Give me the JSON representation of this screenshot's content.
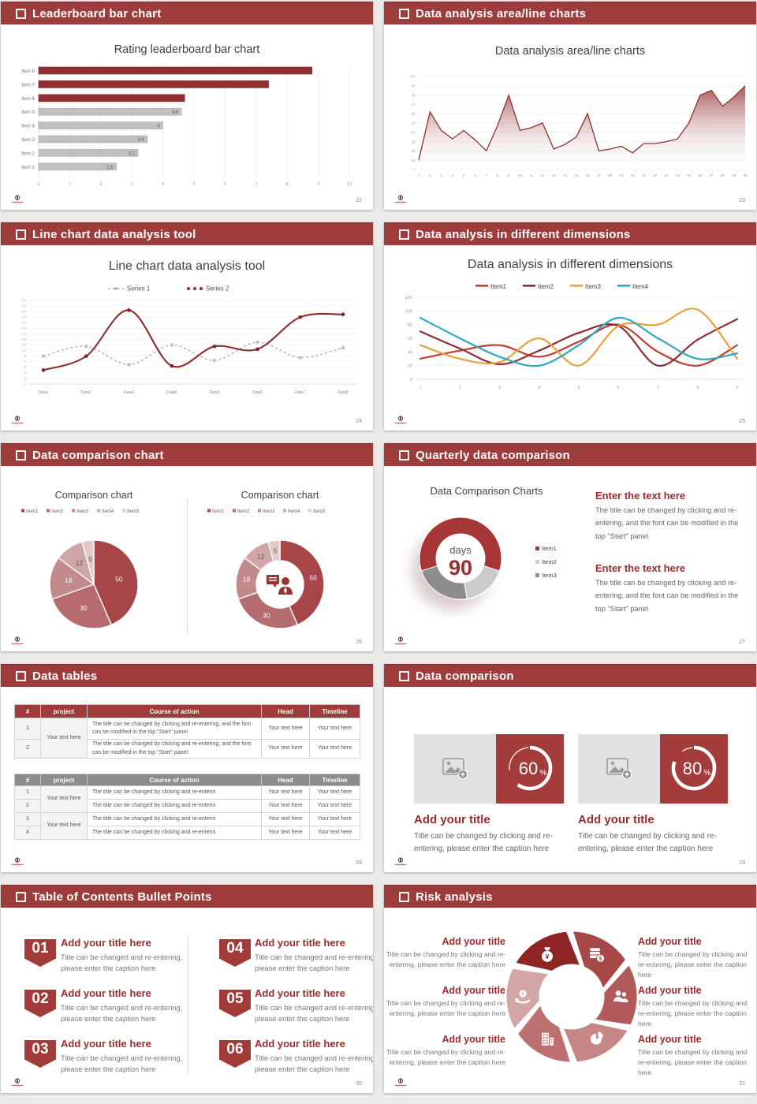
{
  "theme": {
    "header_bg": "#9e3c3c",
    "accent_red": "#9e2b2b",
    "dark_red": "#8f2f2f",
    "bar_gray": "#c1c0c0",
    "body_text": "#666666",
    "page_bg": "#ebeae9"
  },
  "slides": [
    {
      "header": "Leaderboard bar chart",
      "page": "22",
      "chart_data": {
        "type": "bar",
        "orientation": "horizontal",
        "title": "Rating leaderboard bar chart",
        "categories": [
          "Item 1",
          "Item 2",
          "Item 3",
          "Item 4",
          "Item 5",
          "Item 6",
          "Item 7",
          "Item 8"
        ],
        "values": [
          2.5,
          3.2,
          3.5,
          4,
          4.6,
          4.7,
          7.4,
          8.8
        ],
        "value_labels": [
          "2.5",
          "3.2",
          "3.5",
          "4",
          "4.6",
          "",
          "",
          ""
        ],
        "bar_colors": [
          "#c1c0c0",
          "#c1c0c0",
          "#c1c0c0",
          "#c1c0c0",
          "#c1c0c0",
          "#8f2f2f",
          "#8f2f2f",
          "#8f2f2f"
        ],
        "xlim": [
          0,
          10
        ],
        "xticks": [
          0,
          1,
          2,
          3,
          4,
          5,
          6,
          7,
          8,
          9,
          10
        ],
        "grid": true
      }
    },
    {
      "header": "Data analysis area/line charts",
      "page": "23",
      "chart_data": {
        "type": "area",
        "title": "Data analysis area/line charts",
        "x": [
          1,
          2,
          3,
          4,
          5,
          6,
          7,
          8,
          9,
          10,
          11,
          12,
          13,
          14,
          15,
          16,
          17,
          18,
          19,
          20,
          21,
          22,
          23,
          24,
          25,
          26,
          27,
          28,
          29,
          30
        ],
        "values": [
          10,
          62,
          42,
          33,
          42,
          32,
          20,
          47,
          80,
          42,
          45,
          50,
          22,
          27,
          35,
          60,
          20,
          22,
          25,
          18,
          28,
          28,
          30,
          33,
          50,
          80,
          85,
          68,
          78,
          90
        ],
        "ylim": [
          0,
          100
        ],
        "yticks": [
          0,
          10,
          20,
          30,
          40,
          50,
          60,
          70,
          80,
          90,
          100
        ],
        "line_color": "#8c3232",
        "fill_top": "#9c4545",
        "fill_bottom": "#ffffff",
        "grid": true
      }
    },
    {
      "header": "Line chart data analysis tool",
      "page": "24",
      "chart_data": {
        "type": "line",
        "title": "Line chart data analysis tool",
        "categories": [
          "Data1",
          "Data2",
          "Data3",
          "Data4",
          "Data5",
          "Data6",
          "Data7",
          "Data8"
        ],
        "series": [
          {
            "name": "Series 1",
            "color": "#bdbdbd",
            "style": "dashed",
            "values": [
              90,
              125,
              60,
              130,
              75,
              140,
              85,
              120
            ]
          },
          {
            "name": "Series 2",
            "color": "#8e2d2d",
            "style": "solid",
            "values": [
              40,
              90,
              255,
              55,
              125,
              115,
              230,
              240
            ]
          }
        ],
        "ylim": [
          -10,
          290
        ],
        "yticks": [
          290,
          270,
          250,
          230,
          210,
          190,
          170,
          150,
          130,
          110,
          90,
          70,
          50,
          30,
          10,
          -10
        ],
        "legend_position": "top",
        "grid": true
      }
    },
    {
      "header": "Data analysis in different dimensions",
      "page": "25",
      "chart_data": {
        "type": "line",
        "title": "Data analysis in different dimensions",
        "x": [
          1,
          2,
          3,
          4,
          5,
          6,
          7,
          8,
          9
        ],
        "series": [
          {
            "name": "Item1",
            "color": "#c23d30",
            "values": [
              30,
              42,
              50,
              33,
              55,
              80,
              40,
              20,
              50
            ]
          },
          {
            "name": "Item2",
            "color": "#8e2b36",
            "values": [
              70,
              45,
              22,
              42,
              68,
              78,
              20,
              58,
              88
            ]
          },
          {
            "name": "Item3",
            "color": "#e9a13b",
            "values": [
              50,
              30,
              25,
              60,
              20,
              78,
              80,
              102,
              30
            ]
          },
          {
            "name": "Item4",
            "color": "#2fa8c0",
            "values": [
              90,
              60,
              33,
              20,
              50,
              90,
              60,
              30,
              38
            ]
          }
        ],
        "ylim": [
          0,
          120
        ],
        "yticks": [
          0,
          20,
          40,
          60,
          80,
          100,
          120
        ],
        "legend_position": "top",
        "grid": true
      }
    },
    {
      "header": "Data comparison chart",
      "page": "26",
      "chart_data": [
        {
          "type": "pie",
          "title": "Comparison chart",
          "labels": [
            "Item1",
            "Item2",
            "Item3",
            "Item4",
            "Item5"
          ],
          "values": [
            50,
            30,
            18,
            12,
            5
          ],
          "colors": [
            "#a64648",
            "#b66c6e",
            "#c38a8b",
            "#cfa5a6",
            "#e2caca"
          ],
          "label_colors": [
            "#ffffff",
            "#ffffff",
            "#ffffff",
            "#555555",
            "#555555"
          ]
        },
        {
          "type": "donut",
          "title": "Comparison chart",
          "labels": [
            "Item1",
            "Item2",
            "Item3",
            "Item4",
            "Item5"
          ],
          "values": [
            50,
            30,
            18,
            12,
            5
          ],
          "colors": [
            "#a64648",
            "#b66c6e",
            "#c38a8b",
            "#cfa5a6",
            "#e2caca"
          ],
          "label_colors": [
            "#ffffff",
            "#ffffff",
            "#ffffff",
            "#555555",
            "#555555"
          ],
          "center_icon": "presenter-icon"
        }
      ]
    },
    {
      "header": "Quarterly data comparison",
      "page": "27",
      "chart_data": {
        "type": "donut",
        "title": "Data Comparison Charts",
        "center_label": "days",
        "center_value": "90",
        "labels": [
          "Item1",
          "Item2",
          "Item3"
        ],
        "values": [
          60,
          17.5,
          22.5
        ],
        "colors": [
          "#a73737",
          "#cbcbcb",
          "#8d8d8d"
        ],
        "legend_position": "right"
      },
      "text_blocks": [
        {
          "title": "Enter the text here",
          "body": "The title can be changed by clicking and re-entering, and the font can be modified in the top \"Start\" panel"
        },
        {
          "title": "Enter the text here",
          "body": "The title can be changed by clicking and re-entering, and the font can be modified in the top \"Start\" panel"
        }
      ]
    },
    {
      "header": "Data tables",
      "page": "28",
      "tables": [
        {
          "header_bg": "#9e3c3c",
          "columns": [
            "#",
            "project",
            "Course of action",
            "Head",
            "Timeline"
          ],
          "groups": [
            {
              "project": "Your text here",
              "rows": [
                {
                  "num": "1",
                  "course": "The title can be changed by clicking and re-entering, and the font can be modified in the top \"Start\" panel",
                  "head": "Your text here",
                  "timeline": "Your text here"
                },
                {
                  "num": "2",
                  "course": "The title can be changed by clicking and re-entering, and the font can be modified in the top \"Start\" panel",
                  "head": "Your text here",
                  "timeline": "Your text here"
                }
              ]
            }
          ]
        },
        {
          "header_bg": "#8c8c8c",
          "columns": [
            "#",
            "project",
            "Course of action",
            "Head",
            "Timeline"
          ],
          "groups": [
            {
              "project": "Your text here",
              "rows": [
                {
                  "num": "1",
                  "course": "The title can be changed by clicking and re-enterin",
                  "head": "Your text here",
                  "timeline": "Your text here"
                },
                {
                  "num": "2",
                  "course": "The title can be changed by clicking and re-enterin",
                  "head": "Your text here",
                  "timeline": "Your text here"
                }
              ]
            },
            {
              "project": "Your text here",
              "rows": [
                {
                  "num": "3",
                  "course": "The title can be changed by clicking and re-enterin",
                  "head": "Your text here",
                  "timeline": "Your text here"
                },
                {
                  "num": "4",
                  "course": "The title can be changed by clicking and re-enterin",
                  "head": "Your text here",
                  "timeline": "Your text here"
                }
              ]
            }
          ]
        }
      ]
    },
    {
      "header": "Data comparison",
      "page": "29",
      "cards": [
        {
          "percent": "60",
          "percent_symbol": "%",
          "title": "Add your title",
          "caption": "Title can be changed by clicking and re-entering, please enter the caption here"
        },
        {
          "percent": "80",
          "percent_symbol": "%",
          "title": "Add your title",
          "caption": "Title can be changed by clicking and re-entering, please enter the caption here"
        }
      ]
    },
    {
      "header": "Table of Contents Bullet Points",
      "page": "30",
      "items": [
        {
          "num": "01",
          "title": "Add your title here",
          "caption": "Title can be changed and re-entering, please enter the caption here"
        },
        {
          "num": "02",
          "title": "Add your title here",
          "caption": "Title can be changed and re-entering, please enter the caption here"
        },
        {
          "num": "03",
          "title": "Add your title here",
          "caption": "Title can be changed and re-entering, please enter the caption here"
        },
        {
          "num": "04",
          "title": "Add your title here",
          "caption": "Title can be changed and re-entering, please enter the caption here"
        },
        {
          "num": "05",
          "title": "Add your title here",
          "caption": "Title can be changed and re-entering, please enter the caption here"
        },
        {
          "num": "06",
          "title": "Add your title here",
          "caption": "Title can be changed and re-entering, please enter the caption here"
        }
      ]
    },
    {
      "header": "Risk analysis",
      "page": "31",
      "blocks": [
        {
          "side": "left",
          "title": "Add your title",
          "caption": "Title can be changed by clicking and re-entering, please enter the caption here"
        },
        {
          "side": "left",
          "title": "Add your title",
          "caption": "Title can be changed by clicking and re-entering, please enter the caption here"
        },
        {
          "side": "left",
          "title": "Add your title",
          "caption": "Title can be changed by clicking and re-entering, please enter the caption here"
        },
        {
          "side": "right",
          "title": "Add your title",
          "caption": "Title can be changed by clicking and re-entering, please enter the caption here"
        },
        {
          "side": "right",
          "title": "Add your title",
          "caption": "Title can be changed by clicking and re-entering, please enter the caption here"
        },
        {
          "side": "right",
          "title": "Add your title",
          "caption": "Title can be changed by clicking and re-entering, please enter the caption here"
        }
      ],
      "wheel_icons": [
        "money-bag-icon",
        "coin-stack-icon",
        "people-icon",
        "pie-chart-icon",
        "building-icon",
        "hand-coin-icon"
      ],
      "wheel_colors": [
        "#8d2525",
        "#a74747",
        "#b25a5a",
        "#c68686",
        "#bd7070",
        "#d3a6a6"
      ]
    }
  ]
}
